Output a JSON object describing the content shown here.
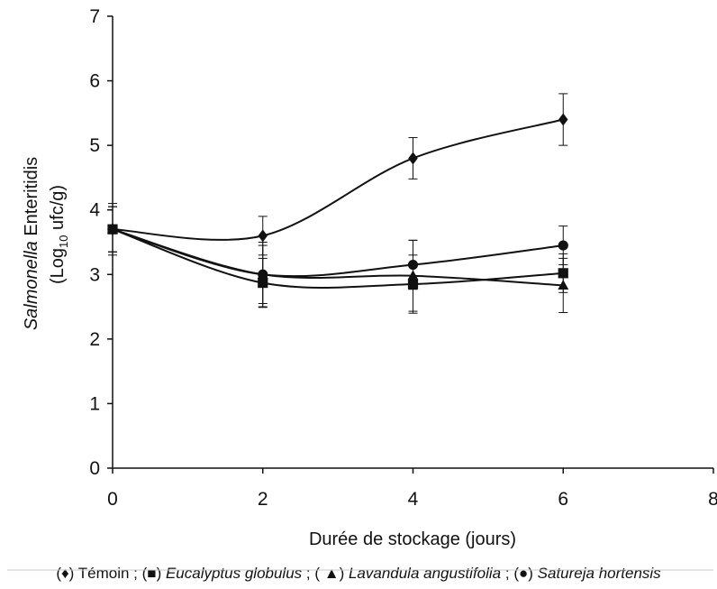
{
  "chart_data": {
    "type": "line",
    "xlabel": "Durée de stockage (jours)",
    "ylabel": {
      "italic": "Salmonella",
      "rest": " Enteritidis",
      "line2_prefix": "(Log",
      "line2_sub": "10",
      "line2_suffix": " ufc/g)"
    },
    "xlim": [
      0,
      8
    ],
    "ylim": [
      0,
      7
    ],
    "xticks": [
      "0",
      "2",
      "4",
      "6",
      "8"
    ],
    "yticks": [
      "0",
      "1",
      "2",
      "3",
      "4",
      "5",
      "6",
      "7"
    ],
    "grid": false,
    "x": [
      0,
      2,
      4,
      6
    ],
    "series": [
      {
        "marker": "diamond",
        "values": [
          3.7,
          3.6,
          4.8,
          5.4
        ],
        "errors": [
          0.4,
          0.3,
          0.32,
          0.4
        ]
      },
      {
        "marker": "square",
        "values": [
          3.7,
          2.87,
          2.85,
          3.02
        ],
        "errors": [
          0.35,
          0.38,
          0.45,
          0.3
        ]
      },
      {
        "marker": "triangle",
        "values": [
          3.7,
          3.0,
          2.98,
          2.83
        ],
        "errors": [
          0.35,
          0.5,
          0.55,
          0.42
        ]
      },
      {
        "marker": "circle",
        "values": [
          3.7,
          3.0,
          3.15,
          3.45
        ],
        "errors": [
          0.35,
          0.45,
          0.38,
          0.3
        ]
      }
    ],
    "legend": {
      "position": "bottom",
      "items": [
        {
          "open": "(",
          "symbol": "♦",
          "close": ") ",
          "label": "Témoin",
          "italic": false,
          "sep": " ; "
        },
        {
          "open": "(",
          "symbol": "■",
          "close": ") ",
          "label": "Eucalyptus globulus",
          "italic": true,
          "sep": " ; "
        },
        {
          "open": "( ",
          "symbol": "▲",
          "close": ") ",
          "label": "Lavandula angustifolia",
          "italic": true,
          "sep": " ; "
        },
        {
          "open": "(",
          "symbol": "●",
          "close": ") ",
          "label": "Satureja hortensis",
          "italic": true,
          "sep": ""
        }
      ]
    },
    "colors": {
      "line": "#111111",
      "axis": "#111111"
    }
  }
}
